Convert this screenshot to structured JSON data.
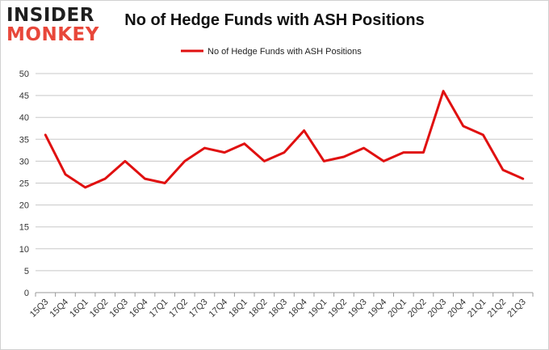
{
  "header": {
    "logo_top": "INSIDER",
    "logo_bottom": "MONKEY",
    "title": "No of Hedge Funds with ASH Positions"
  },
  "colors": {
    "line": "#e01010",
    "grid": "#c8c8c8",
    "axis_text": "#333333",
    "logo_accent": "#e8473a"
  },
  "chart_data": {
    "type": "line",
    "title": "No of Hedge Funds with ASH Positions",
    "xlabel": "",
    "ylabel": "",
    "categories": [
      "15Q3",
      "15Q4",
      "16Q1",
      "16Q2",
      "16Q3",
      "16Q4",
      "17Q1",
      "17Q2",
      "17Q3",
      "17Q4",
      "18Q1",
      "18Q2",
      "18Q3",
      "18Q4",
      "19Q1",
      "19Q2",
      "19Q3",
      "19Q4",
      "20Q1",
      "20Q2",
      "20Q3",
      "20Q4",
      "21Q1",
      "21Q2",
      "21Q3"
    ],
    "series": [
      {
        "name": "No of Hedge Funds with ASH Positions",
        "values": [
          36,
          27,
          24,
          26,
          30,
          26,
          25,
          30,
          33,
          32,
          34,
          30,
          32,
          37,
          30,
          31,
          33,
          30,
          32,
          32,
          46,
          38,
          36,
          28,
          26
        ]
      }
    ],
    "ylim": [
      0,
      50
    ],
    "yticks": [
      0,
      5,
      10,
      15,
      20,
      25,
      30,
      35,
      40,
      45,
      50
    ],
    "grid": true,
    "legend_position": "top-center"
  }
}
